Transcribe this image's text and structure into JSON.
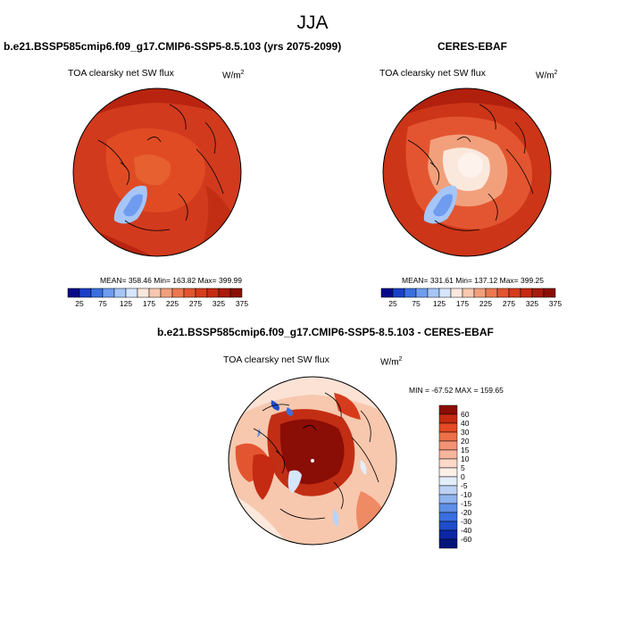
{
  "figure_title": "JJA",
  "panels": [
    {
      "title": "b.e21.BSSP585cmip6.f09_g17.CMIP6-SSP5-8.5.103 (yrs 2075-2099)",
      "variable": "TOA clearsky net SW flux",
      "units_base": "W/m",
      "units_exp": "2",
      "stats": "MEAN= 358.46  Min= 163.82  Max= 399.99"
    },
    {
      "title": "CERES-EBAF",
      "variable": "TOA clearsky net SW flux",
      "units_base": "W/m",
      "units_exp": "2",
      "stats": "MEAN= 331.61  Min= 137.12  Max= 399.25"
    },
    {
      "title": "b.e21.BSSP585cmip6.f09_g17.CMIP6-SSP5-8.5.103 - CERES-EBAF",
      "variable": "TOA clearsky net SW flux",
      "units_base": "W/m",
      "units_exp": "2",
      "stats": "MIN = -67.52 MAX = 159.65"
    }
  ],
  "colorbars": {
    "absolute": {
      "ticks": [
        "25",
        "75",
        "125",
        "175",
        "225",
        "275",
        "325",
        "375"
      ],
      "colors": [
        "#08088a",
        "#1a3fc7",
        "#3a6fe0",
        "#6f9cf0",
        "#a6c6f7",
        "#d6e6fb",
        "#fbe8dd",
        "#f7c8ae",
        "#f2a07c",
        "#eb7850",
        "#e35530",
        "#d63b1c",
        "#c52a12",
        "#a81a0c",
        "#8a0d06"
      ]
    },
    "difference": {
      "ticks": [
        "60",
        "40",
        "30",
        "20",
        "15",
        "10",
        "5",
        "0",
        "-5",
        "-10",
        "-15",
        "-20",
        "-30",
        "-40",
        "-60"
      ],
      "colors": [
        "#8a0d06",
        "#c52a12",
        "#e34a25",
        "#ee7048",
        "#f39274",
        "#f7b59c",
        "#fbd8c8",
        "#fdf0e8",
        "#e4eefb",
        "#bcd2f5",
        "#8fb3ee",
        "#5f8fe6",
        "#3a6fe0",
        "#1f4cc9",
        "#0c26a6",
        "#05157a"
      ]
    }
  }
}
